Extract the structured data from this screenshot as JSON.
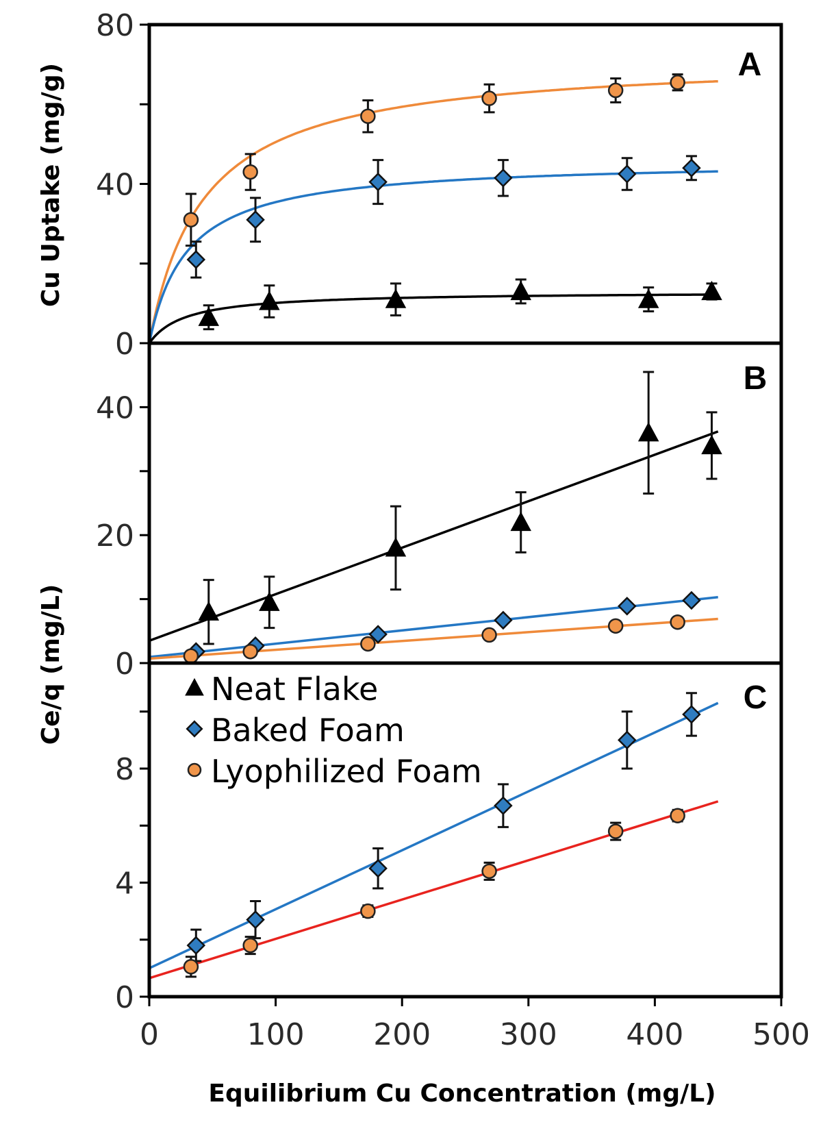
{
  "chart_data": {
    "type": "scatter",
    "xlabel": "Equilibrium Cu Concentration (mg/L)",
    "xlim": [
      0,
      500
    ],
    "xticks": [
      0,
      100,
      200,
      300,
      400,
      500
    ],
    "shared_ylabel": "Ce/q (mg/L)",
    "series_styles": {
      "neat": {
        "name": "Neat Flake",
        "marker": "triangle",
        "fill": "#000000",
        "line_color": "#000000"
      },
      "baked": {
        "name": "Baked Foam",
        "marker": "diamond",
        "fill": "#2f7cc0",
        "line_color": "#2477c4"
      },
      "lyo": {
        "name": "Lyophilized Foam",
        "marker": "circle",
        "fill": "#f0954a",
        "line_color": "#ef8a3a"
      }
    },
    "legend": [
      {
        "key": "neat",
        "label": "Neat Flake"
      },
      {
        "key": "baked",
        "label": "Baked Foam"
      },
      {
        "key": "lyo",
        "label": "Lyophilized Foam"
      }
    ],
    "panels": [
      {
        "id": "A",
        "label": "A",
        "ylabel": "Cu Uptake (mg/g)",
        "ylim": [
          0,
          80
        ],
        "yticks_labeled": [
          0,
          40,
          80
        ],
        "yticks_minor": [
          20,
          60
        ],
        "series": [
          {
            "key": "lyo",
            "x": [
              33,
              80,
              173,
              269,
              369,
              418
            ],
            "y": [
              31,
              43,
              57,
              61.5,
              63.5,
              65.5
            ],
            "err": [
              6.5,
              4.5,
              4,
              3.5,
              3,
              2
            ]
          },
          {
            "key": "baked",
            "x": [
              37,
              84,
              181,
              280,
              378,
              429
            ],
            "y": [
              21,
              31,
              40.5,
              41.5,
              42.5,
              44
            ],
            "err": [
              4.5,
              5.5,
              5.5,
              4.5,
              4,
              3
            ]
          },
          {
            "key": "neat",
            "x": [
              47,
              95,
              195,
              294,
              395,
              445
            ],
            "y": [
              6.5,
              10.5,
              11,
              13,
              11,
              13
            ],
            "err": [
              3,
              4,
              4,
              3,
              3,
              2
            ]
          }
        ],
        "fits": [
          {
            "key": "lyo",
            "model": "langmuir",
            "qmax": 72,
            "b": 0.0235,
            "x_end": 450
          },
          {
            "key": "baked",
            "model": "langmuir",
            "qmax": 46,
            "b": 0.0335,
            "x_end": 450
          },
          {
            "key": "neat",
            "model": "langmuir",
            "qmax": 13,
            "b": 0.035,
            "x_end": 450
          }
        ]
      },
      {
        "id": "B",
        "label": "B",
        "ylabel": "",
        "ylim": [
          0,
          50
        ],
        "yticks_labeled": [
          0,
          20,
          40
        ],
        "yticks_minor": [
          10,
          30
        ],
        "series": [
          {
            "key": "neat",
            "x": [
              47,
              95,
              195,
              294,
              395,
              445
            ],
            "y": [
              8,
              9.5,
              18,
              22,
              36,
              34
            ],
            "err": [
              5,
              4,
              6.5,
              4.7,
              9.5,
              5.2
            ]
          },
          {
            "key": "baked",
            "x": [
              37,
              84,
              181,
              280,
              378,
              429
            ],
            "y": [
              1.8,
              2.7,
              4.5,
              6.7,
              8.9,
              9.8
            ],
            "err": [
              0,
              0,
              0,
              0,
              0,
              0
            ]
          },
          {
            "key": "lyo",
            "x": [
              33,
              80,
              173,
              269,
              369,
              418
            ],
            "y": [
              1.1,
              1.8,
              3,
              4.4,
              5.8,
              6.4
            ],
            "err": [
              0,
              0,
              0,
              0,
              0,
              0
            ]
          }
        ],
        "fits": [
          {
            "key": "neat",
            "model": "linear",
            "x0": 0,
            "y0": 3.5,
            "x1": 450,
            "y1": 36.2
          },
          {
            "key": "baked",
            "model": "linear",
            "x0": 0,
            "y0": 0.95,
            "x1": 450,
            "y1": 10.3
          },
          {
            "key": "lyo",
            "model": "linear",
            "x0": 0,
            "y0": 0.7,
            "x1": 450,
            "y1": 6.9
          }
        ]
      },
      {
        "id": "C",
        "label": "C",
        "ylabel": "",
        "ylim": [
          0,
          11.7
        ],
        "yticks_labeled": [
          0,
          4,
          8
        ],
        "yticks_minor": [
          2,
          6,
          10
        ],
        "series": [
          {
            "key": "baked",
            "x": [
              37,
              84,
              181,
              280,
              378,
              429
            ],
            "y": [
              1.8,
              2.7,
              4.5,
              6.7,
              9,
              9.9
            ],
            "err": [
              0.55,
              0.65,
              0.7,
              0.75,
              1,
              0.75
            ]
          },
          {
            "key": "lyo",
            "x": [
              33,
              80,
              173,
              269,
              369,
              418
            ],
            "y": [
              1.05,
              1.8,
              3,
              4.4,
              5.8,
              6.35
            ],
            "err": [
              0.35,
              0.3,
              0.2,
              0.3,
              0.3,
              0.2
            ]
          }
        ],
        "fits": [
          {
            "key": "baked",
            "model": "linear",
            "x0": 0,
            "y0": 1.0,
            "x1": 450,
            "y1": 10.3,
            "color": "#2477c4"
          },
          {
            "key": "lyo",
            "model": "linear",
            "x0": 0,
            "y0": 0.65,
            "x1": 450,
            "y1": 6.85,
            "color": "#e8231e"
          }
        ]
      }
    ]
  }
}
